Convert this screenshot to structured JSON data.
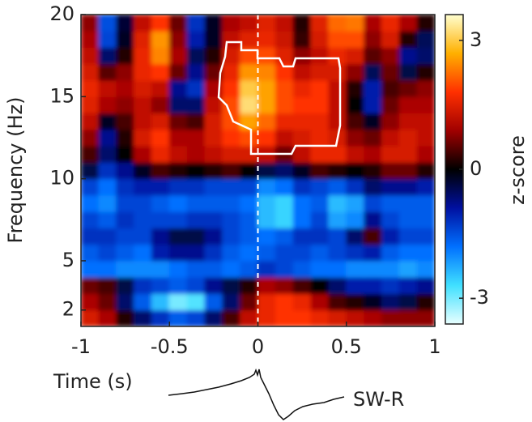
{
  "chart_data": {
    "type": "heatmap",
    "x_label": "Time (s)",
    "y_label": "Frequency (Hz)",
    "colorbar_label": "z-score",
    "annotation": "SW-R",
    "xlim": [
      -1,
      1
    ],
    "ylim": [
      1,
      20
    ],
    "xticks": [
      -1,
      -0.5,
      0,
      0.5,
      1
    ],
    "yticks": [
      2,
      5,
      10,
      15,
      20
    ],
    "clim": [
      -3.6,
      3.6
    ],
    "cticks": [
      -3,
      0,
      3
    ],
    "colormap": [
      "#e8ffff",
      "#40e0ff",
      "#0070ff",
      "#0010a0",
      "#000000",
      "#a00000",
      "#ff3000",
      "#ffb000",
      "#ffffd0"
    ],
    "x": [
      -0.95,
      -0.85,
      -0.75,
      -0.65,
      -0.55,
      -0.45,
      -0.35,
      -0.25,
      -0.15,
      -0.05,
      0.05,
      0.15,
      0.25,
      0.35,
      0.45,
      0.55,
      0.65,
      0.75,
      0.85,
      0.95
    ],
    "y": [
      1.5,
      2.5,
      3.5,
      4.5,
      5.5,
      6.5,
      7.5,
      8.5,
      9.5,
      10.5,
      11.5,
      12.5,
      13.5,
      14.5,
      15.5,
      16.5,
      17.5,
      18.5,
      19.5
    ],
    "z": [
      [
        1.4,
        1.0,
        0.2,
        -0.6,
        -1.2,
        -1.6,
        -1.4,
        -0.6,
        0.4,
        1.2,
        1.6,
        1.8,
        1.8,
        1.6,
        1.4,
        1.2,
        1.0,
        0.8,
        0.8,
        0.8
      ],
      [
        1.0,
        0.6,
        -0.6,
        -1.6,
        -2.4,
        -3.0,
        -2.8,
        -1.6,
        -0.6,
        0.6,
        1.6,
        1.8,
        1.6,
        1.0,
        0.4,
        0.2,
        -0.2,
        -0.6,
        -0.4,
        0.2
      ],
      [
        0.6,
        0.4,
        -0.4,
        -1.2,
        -1.4,
        -1.6,
        -1.4,
        -0.8,
        -0.4,
        0.2,
        1.0,
        0.8,
        0.4,
        0.0,
        -0.6,
        -1.0,
        -1.0,
        -1.2,
        -1.0,
        -0.8
      ],
      [
        -1.8,
        -1.8,
        -2.0,
        -2.0,
        -2.0,
        -1.8,
        -1.6,
        -1.6,
        -1.8,
        -1.6,
        -1.2,
        -1.4,
        -1.6,
        -1.8,
        -1.8,
        -2.0,
        -2.0,
        -2.0,
        -2.2,
        -2.0
      ],
      [
        -1.6,
        -1.4,
        -1.6,
        -1.8,
        -1.0,
        -0.8,
        -0.8,
        -1.2,
        -1.6,
        -1.8,
        -1.6,
        -1.4,
        -1.4,
        -1.6,
        -1.4,
        -1.2,
        -1.0,
        -1.6,
        -1.8,
        -1.8
      ],
      [
        -1.2,
        -1.2,
        -1.4,
        -1.4,
        -0.8,
        -0.4,
        -0.4,
        -0.8,
        -1.4,
        -1.6,
        -1.8,
        -1.6,
        -1.2,
        -1.2,
        -1.4,
        -0.6,
        0.4,
        -1.0,
        -1.4,
        -1.4
      ],
      [
        -1.4,
        -1.6,
        -1.2,
        -1.4,
        -1.4,
        -1.4,
        -1.2,
        -1.2,
        -1.4,
        -1.6,
        -2.4,
        -2.6,
        -1.8,
        -1.4,
        -2.2,
        -2.0,
        -0.8,
        -1.4,
        -1.6,
        -1.6
      ],
      [
        -1.8,
        -2.0,
        -1.4,
        -1.4,
        -1.6,
        -1.8,
        -1.6,
        -1.6,
        -1.6,
        -1.8,
        -2.4,
        -2.6,
        -1.8,
        -1.6,
        -2.4,
        -2.2,
        -1.4,
        -1.6,
        -1.6,
        -1.6
      ],
      [
        -1.4,
        -1.8,
        -1.2,
        -1.0,
        -1.0,
        -1.2,
        -1.2,
        -1.4,
        -1.4,
        -1.4,
        -2.0,
        -1.8,
        -1.2,
        -1.4,
        -1.6,
        -1.2,
        -0.6,
        -0.8,
        -0.8,
        -1.0
      ],
      [
        -0.4,
        -1.2,
        -0.8,
        -0.2,
        0.4,
        0.2,
        0.0,
        0.2,
        0.4,
        0.0,
        -0.4,
        -0.6,
        -0.2,
        0.4,
        0.2,
        0.0,
        0.2,
        0.6,
        0.6,
        0.2
      ],
      [
        0.4,
        -0.6,
        0.0,
        1.0,
        1.6,
        1.2,
        1.0,
        1.2,
        1.4,
        1.4,
        1.2,
        0.6,
        1.2,
        1.6,
        1.6,
        1.2,
        1.0,
        1.4,
        1.4,
        1.0
      ],
      [
        0.8,
        -0.8,
        0.2,
        1.4,
        1.8,
        1.0,
        1.0,
        1.4,
        1.8,
        2.0,
        1.8,
        1.2,
        1.4,
        1.6,
        1.4,
        0.8,
        0.6,
        1.2,
        1.4,
        1.2
      ],
      [
        1.2,
        -0.2,
        0.4,
        1.2,
        1.4,
        0.6,
        0.4,
        1.4,
        2.0,
        2.6,
        2.2,
        1.6,
        1.6,
        1.6,
        1.2,
        0.4,
        -0.2,
        0.8,
        1.2,
        1.2
      ],
      [
        1.5,
        1.0,
        0.8,
        1.2,
        0.8,
        -0.6,
        -0.6,
        1.2,
        2.0,
        3.2,
        2.6,
        2.0,
        1.8,
        1.8,
        1.2,
        0.0,
        -1.0,
        0.6,
        1.0,
        1.0
      ],
      [
        1.6,
        1.2,
        1.0,
        1.4,
        1.2,
        -0.8,
        -1.2,
        1.0,
        1.8,
        3.0,
        2.6,
        2.0,
        1.6,
        1.8,
        1.2,
        0.2,
        -1.0,
        0.4,
        0.6,
        0.8
      ],
      [
        1.4,
        0.5,
        0.8,
        1.6,
        1.8,
        0.6,
        -0.8,
        0.6,
        1.6,
        2.5,
        2.4,
        1.8,
        1.2,
        1.4,
        1.4,
        0.8,
        -0.5,
        0.6,
        -0.4,
        0.2
      ],
      [
        1.2,
        -0.6,
        0.2,
        1.6,
        2.4,
        1.0,
        -0.5,
        0.2,
        1.4,
        2.0,
        2.0,
        1.5,
        0.8,
        1.2,
        1.6,
        1.4,
        0.5,
        0.8,
        -0.8,
        -0.6
      ],
      [
        1.0,
        -1.4,
        -0.2,
        1.5,
        2.5,
        0.8,
        -1.0,
        -0.2,
        1.2,
        1.5,
        1.6,
        1.3,
        0.3,
        1.4,
        2.0,
        2.0,
        0.8,
        1.4,
        0.2,
        -0.5
      ],
      [
        0.8,
        -1.5,
        -0.3,
        1.2,
        1.8,
        0.6,
        -1.2,
        -0.2,
        1.0,
        1.2,
        1.5,
        1.2,
        0.2,
        1.5,
        2.2,
        2.3,
        1.0,
        1.6,
        1.0,
        0.2
      ]
    ]
  }
}
